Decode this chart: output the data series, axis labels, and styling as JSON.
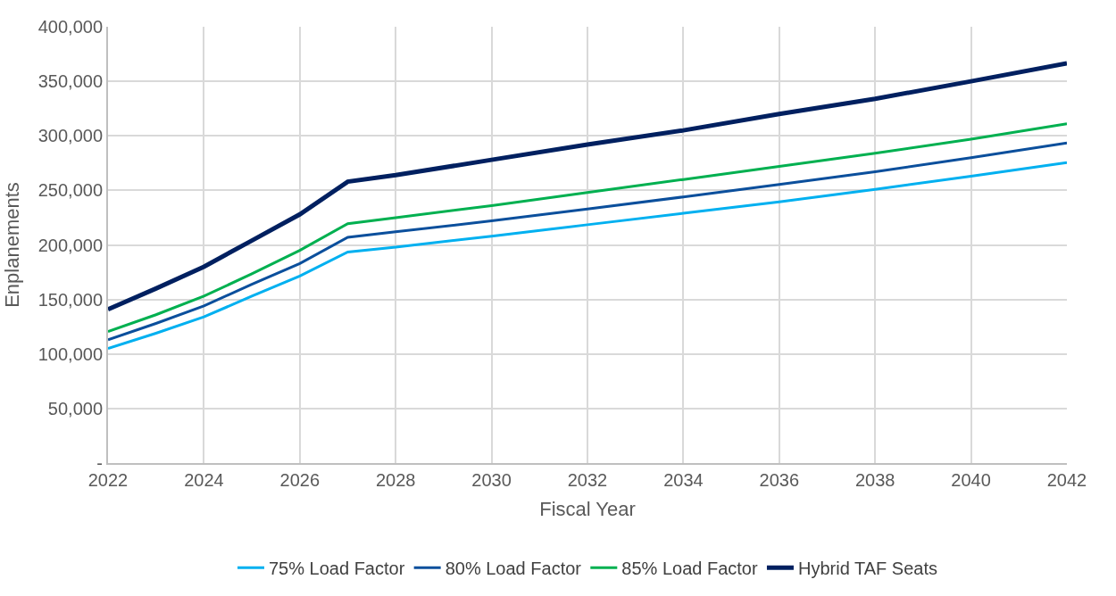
{
  "chart_data": {
    "type": "line",
    "xlabel": "Fiscal Year",
    "ylabel": "Enplanements",
    "x": [
      2022,
      2023,
      2024,
      2025,
      2026,
      2027,
      2028,
      2030,
      2032,
      2034,
      2036,
      2038,
      2040,
      2042
    ],
    "series": [
      {
        "name": "75% Load Factor",
        "color": "#00b0f0",
        "values": [
          105000,
          119000,
          134000,
          153000,
          171500,
          193500,
          198000,
          208000,
          218500,
          229000,
          239500,
          251000,
          263000,
          275500
        ]
      },
      {
        "name": "80% Load Factor",
        "color": "#0b4f9c",
        "values": [
          113000,
          128000,
          144000,
          164000,
          183000,
          207000,
          212000,
          222000,
          233000,
          244000,
          255500,
          267000,
          280000,
          293500
        ]
      },
      {
        "name": "85% Load Factor",
        "color": "#00b050",
        "values": [
          120500,
          136000,
          153000,
          173500,
          195000,
          219500,
          225000,
          236000,
          248000,
          260000,
          272000,
          284000,
          297000,
          311000
        ]
      },
      {
        "name": "Hybrid TAF Seats",
        "color": "#002060",
        "values": [
          141000,
          160000,
          180000,
          204000,
          228000,
          258000,
          264000,
          278000,
          292000,
          305000,
          320000,
          334000,
          350000,
          366500
        ]
      }
    ],
    "xlim": [
      2022,
      2042
    ],
    "xticks": [
      2022,
      2024,
      2026,
      2028,
      2030,
      2032,
      2034,
      2036,
      2038,
      2040,
      2042
    ],
    "ylim": [
      0,
      400000
    ],
    "yticks": [
      {
        "value": 0,
        "label": "-"
      },
      {
        "value": 50000,
        "label": "50,000"
      },
      {
        "value": 100000,
        "label": "100,000"
      },
      {
        "value": 150000,
        "label": "150,000"
      },
      {
        "value": 200000,
        "label": "200,000"
      },
      {
        "value": 250000,
        "label": "250,000"
      },
      {
        "value": 300000,
        "label": "300,000"
      },
      {
        "value": 350000,
        "label": "350,000"
      },
      {
        "value": 400000,
        "label": "400,000"
      }
    ],
    "grid": true,
    "legend": "bottom",
    "marker": "none",
    "line_style": "solid"
  }
}
